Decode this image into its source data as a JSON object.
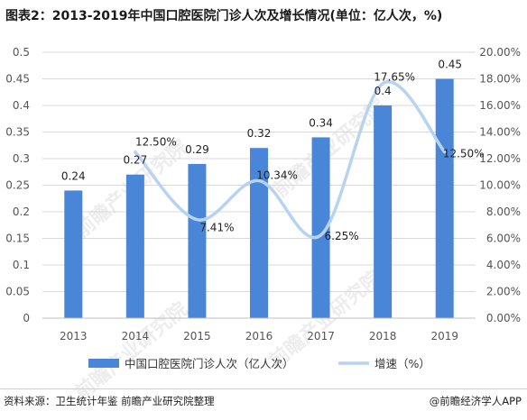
{
  "title": "图表2：2013-2019年中国口腔医院门诊人次及增长情况(单位：亿人次，%)",
  "source": "资料来源：卫生统计年鉴 前瞻产业研究院整理",
  "credit": "@前瞻经济学人APP",
  "watermark": "前瞻产业研究院",
  "colors": {
    "bar": "#4A86D8",
    "line": "#B7D3F2",
    "grid": "#D9D9D9"
  },
  "chart_data": {
    "type": "bar",
    "categories": [
      "2013",
      "2014",
      "2015",
      "2016",
      "2017",
      "2018",
      "2019"
    ],
    "series": [
      {
        "name": "中国口腔医院门诊人次（亿人次）",
        "type": "bar",
        "axis": "left",
        "values": [
          0.24,
          0.27,
          0.29,
          0.32,
          0.34,
          0.4,
          0.45
        ],
        "labels": [
          "0.24",
          "0.27",
          "0.29",
          "0.32",
          "0.34",
          "0.4",
          "0.45"
        ]
      },
      {
        "name": "增速（%）",
        "type": "line",
        "axis": "right",
        "x": [
          "2014",
          "2015",
          "2016",
          "2017",
          "2018",
          "2019"
        ],
        "values": [
          12.5,
          7.41,
          10.34,
          6.25,
          17.65,
          12.5
        ],
        "labels": [
          "12.50%",
          "7.41%",
          "10.34%",
          "6.25%",
          "17.65%",
          "12.50%"
        ]
      }
    ],
    "y_left": {
      "ylim": [
        0,
        0.5
      ],
      "ticks": [
        "0",
        "0.05",
        "0.1",
        "0.15",
        "0.2",
        "0.25",
        "0.3",
        "0.35",
        "0.4",
        "0.45",
        "0.5"
      ]
    },
    "y_right": {
      "ylim": [
        0,
        20
      ],
      "ticks": [
        "0.00%",
        "2.00%",
        "4.00%",
        "6.00%",
        "8.00%",
        "10.00%",
        "12.00%",
        "14.00%",
        "16.00%",
        "18.00%",
        "20.00%"
      ]
    },
    "grid": true,
    "legend": "bottom"
  }
}
